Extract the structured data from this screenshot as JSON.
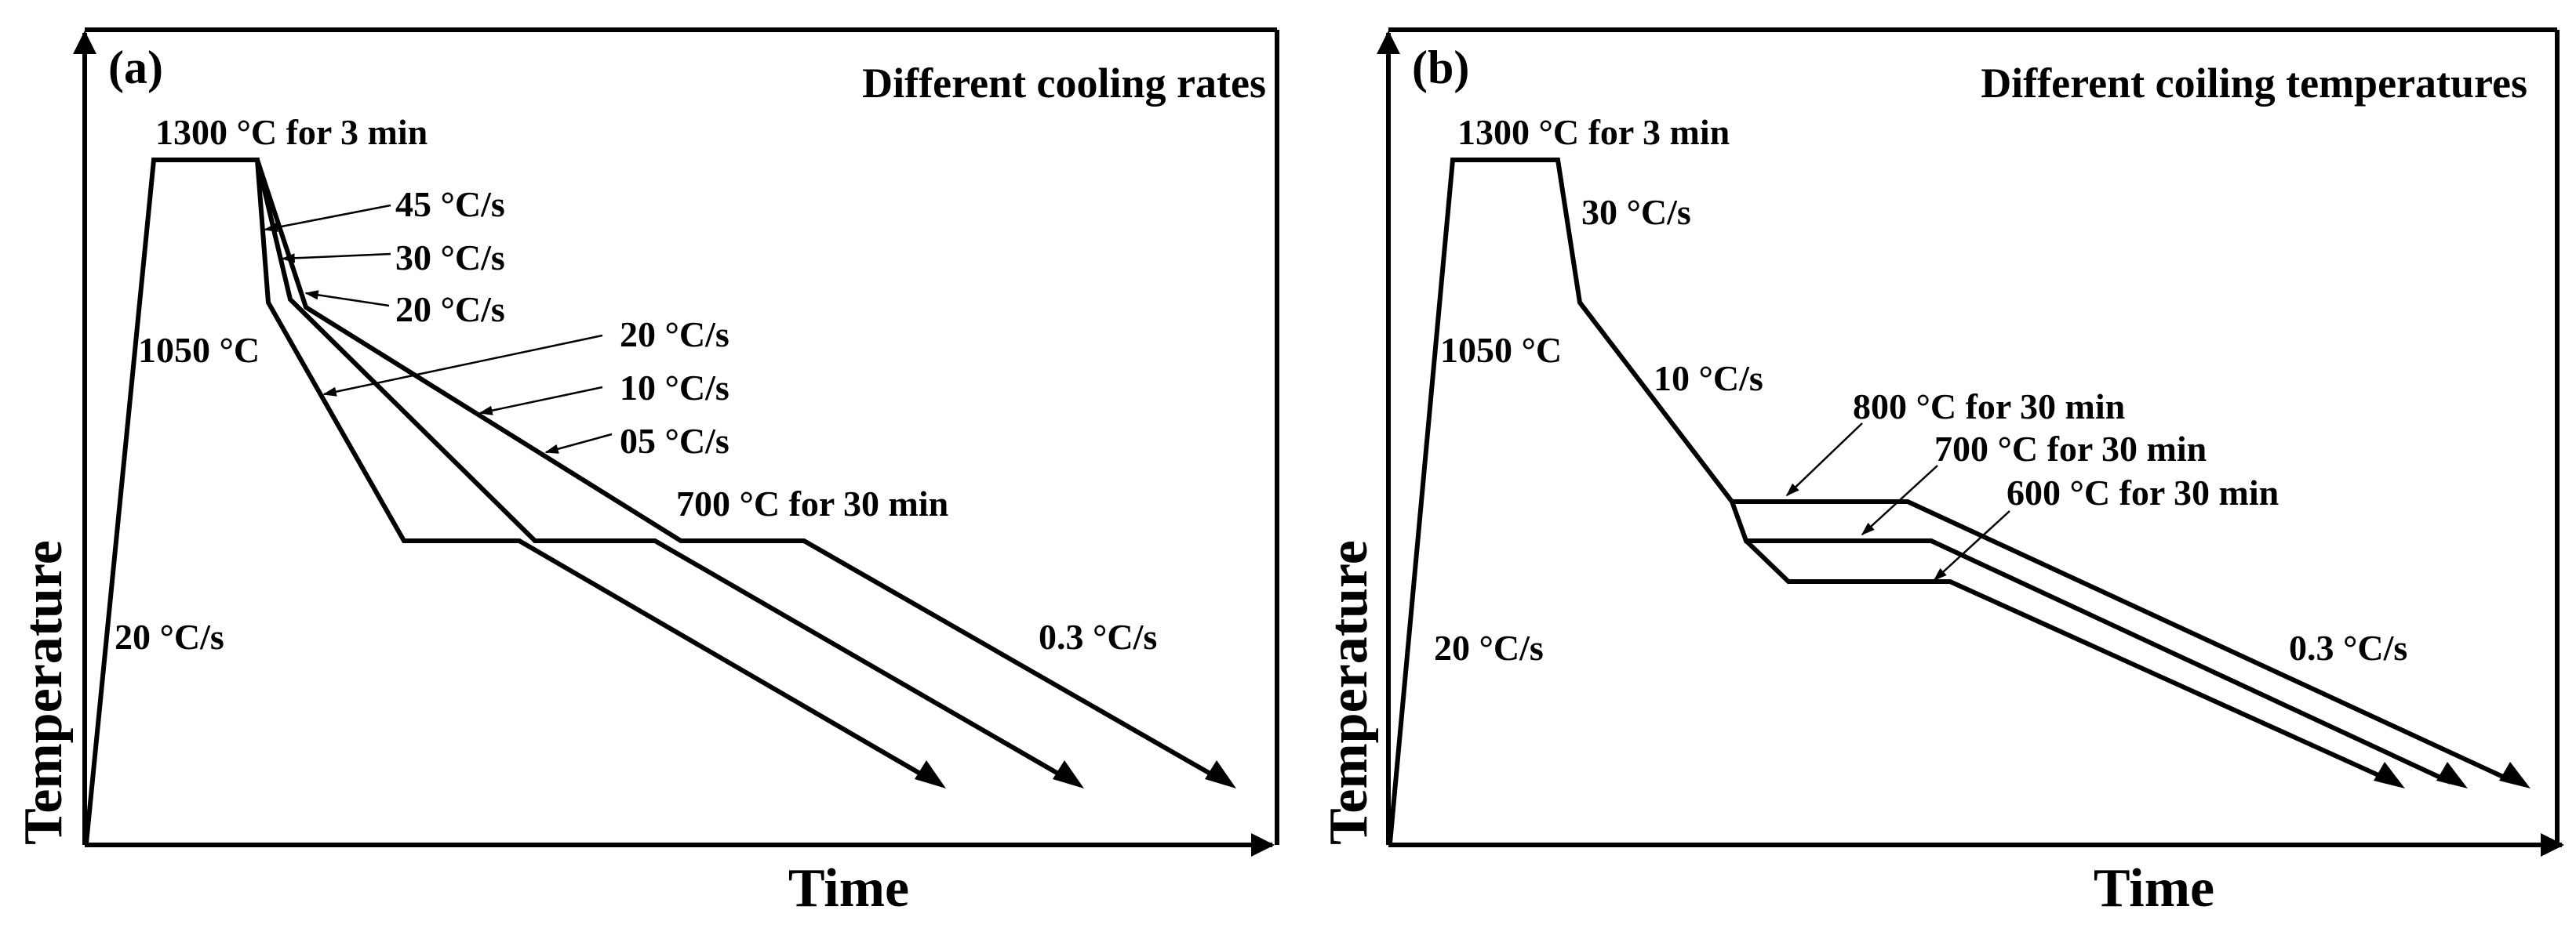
{
  "panels": [
    {
      "label": "(a)",
      "title": "Different cooling rates",
      "ylabel": "Temperature",
      "xlabel": "Time",
      "labels": {
        "soak": "1300 °C for 3 min",
        "heat_rate": "20 °C/s",
        "t1050": "1050 °C",
        "r45": "45 °C/s",
        "r30": "30 °C/s",
        "r20a": "20 °C/s",
        "r20b": "20 °C/s",
        "r10": "10 °C/s",
        "r05": "05 °C/s",
        "coil": "700 °C for 30 min",
        "final": "0.3 °C/s"
      }
    },
    {
      "label": "(b)",
      "title": "Different coiling temperatures",
      "ylabel": "Temperature",
      "xlabel": "Time",
      "labels": {
        "soak": "1300 °C for 3 min",
        "heat_rate": "20 °C/s",
        "r30": "30 °C/s",
        "t1050": "1050 °C",
        "r10": "10 °C/s",
        "c800": "800 °C for 30 min",
        "c700": "700 °C for 30 min",
        "c600": "600 °C for 30 min",
        "final": "0.3 °C/s"
      }
    }
  ]
}
